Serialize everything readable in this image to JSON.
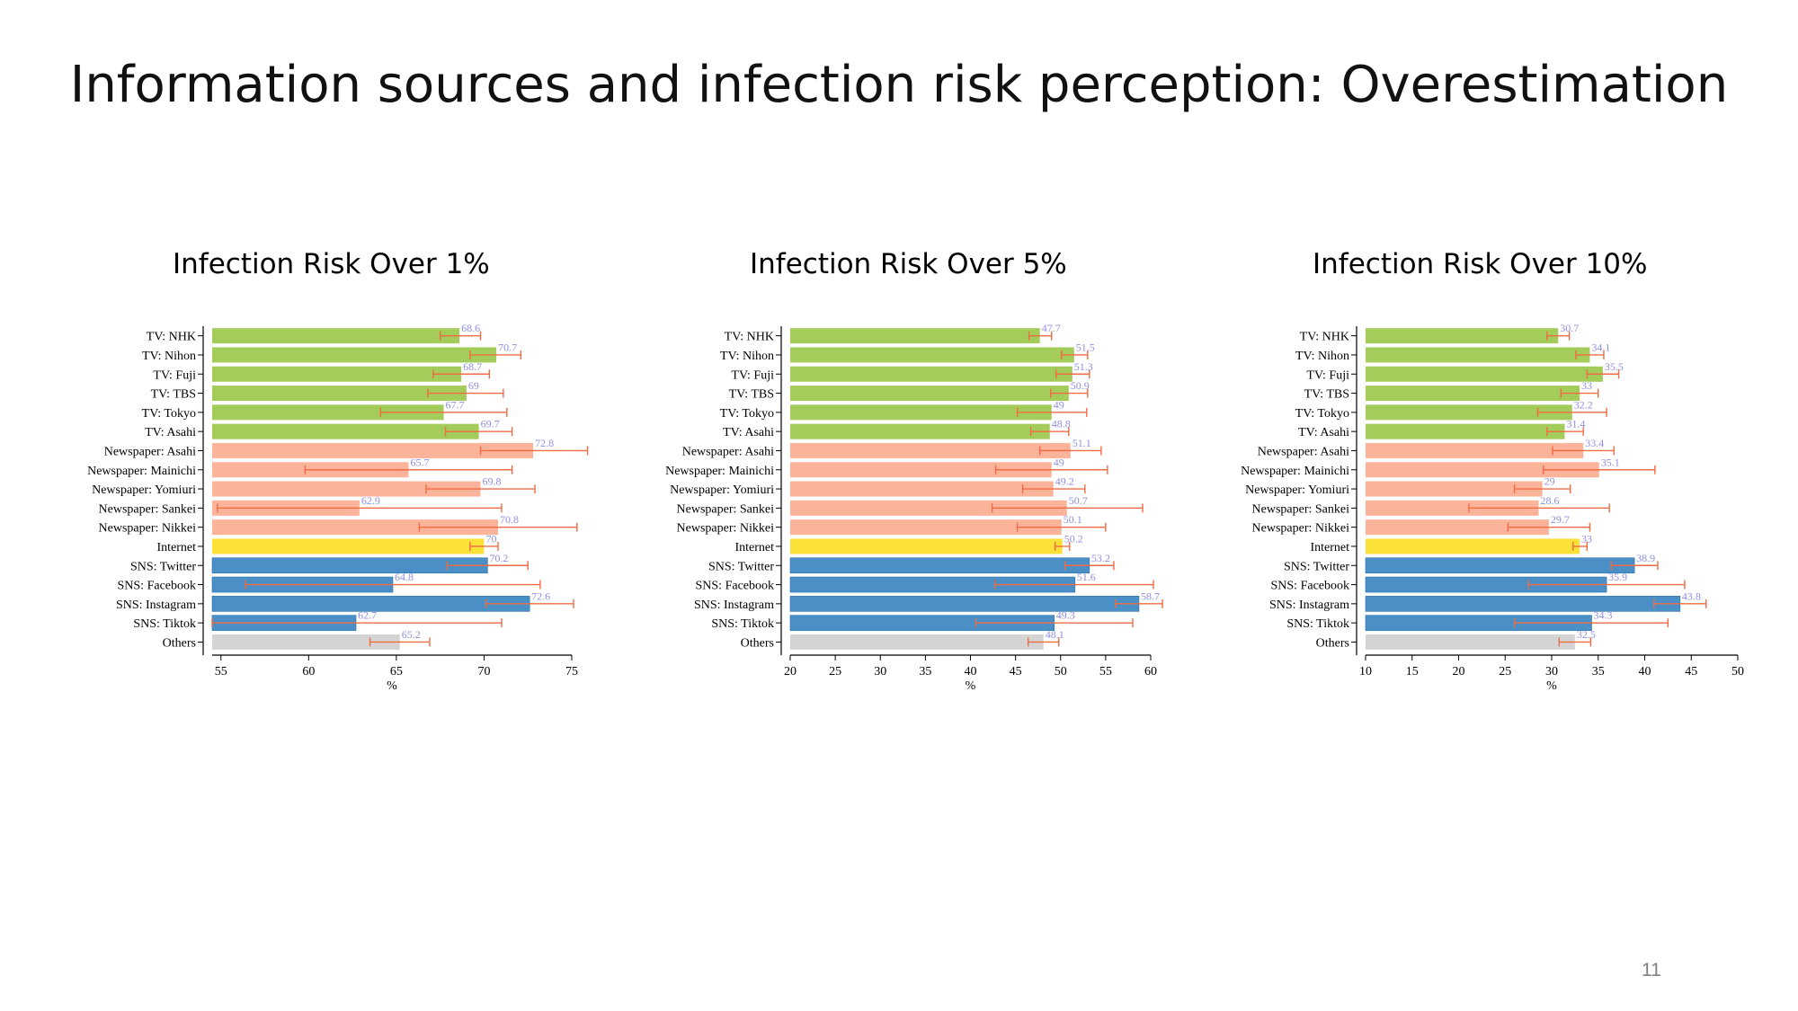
{
  "slide": {
    "title": "Information sources and infection risk perception: Overestimation",
    "page_number": "11"
  },
  "colors": {
    "tv": "#a3cc5a",
    "newspaper": "#fbb39a",
    "internet": "#fbe138",
    "sns": "#4a8fc5",
    "others": "#d4d4d4",
    "error_bar": "#f26b43",
    "value_label": "#8f8fe0"
  },
  "chart_data": [
    {
      "type": "bar",
      "orientation": "horizontal",
      "title": "Infection Risk Over 1%",
      "xlabel": "%",
      "xlim": [
        54.5,
        75
      ],
      "xticks": [
        55,
        60,
        65,
        70,
        75
      ],
      "categories": [
        "TV: NHK",
        "TV: Nihon",
        "TV: Fuji",
        "TV: TBS",
        "TV: Tokyo",
        "TV: Asahi",
        "Newspaper: Asahi",
        "Newspaper: Mainichi",
        "Newspaper: Yomiuri",
        "Newspaper: Sankei",
        "Newspaper: Nikkei",
        "Internet",
        "SNS: Twitter",
        "SNS: Facebook",
        "SNS: Instagram",
        "SNS: Tiktok",
        "Others"
      ],
      "groups": [
        "tv",
        "tv",
        "tv",
        "tv",
        "tv",
        "tv",
        "newspaper",
        "newspaper",
        "newspaper",
        "newspaper",
        "newspaper",
        "internet",
        "sns",
        "sns",
        "sns",
        "sns",
        "others"
      ],
      "values": [
        68.6,
        70.7,
        68.7,
        69,
        67.7,
        69.7,
        72.8,
        65.7,
        69.8,
        62.9,
        70.8,
        70,
        70.2,
        64.8,
        72.6,
        62.7,
        65.2
      ],
      "labels": [
        "68.6",
        "70.7",
        "68.7",
        "69",
        "67.7",
        "69.7",
        "72.8",
        "65.7",
        "69.8",
        "62.9",
        "70.8",
        "70",
        "70.2",
        "64.8",
        "72.6",
        "62.7",
        "65.2"
      ],
      "error_low": [
        67.5,
        69.2,
        67.1,
        66.8,
        64.1,
        67.8,
        69.8,
        59.8,
        66.7,
        54.8,
        66.3,
        69.2,
        67.9,
        56.4,
        70.1,
        54.5,
        63.5
      ],
      "error_high": [
        69.8,
        72.1,
        70.3,
        71.1,
        71.3,
        71.6,
        75.9,
        71.6,
        72.9,
        71.0,
        75.3,
        70.8,
        72.5,
        73.2,
        75.1,
        71.0,
        66.9
      ]
    },
    {
      "type": "bar",
      "orientation": "horizontal",
      "title": "Infection Risk Over 5%",
      "xlabel": "%",
      "xlim": [
        20,
        60
      ],
      "xticks": [
        20,
        25,
        30,
        35,
        40,
        45,
        50,
        55,
        60
      ],
      "categories": [
        "TV: NHK",
        "TV: Nihon",
        "TV: Fuji",
        "TV: TBS",
        "TV: Tokyo",
        "TV: Asahi",
        "Newspaper: Asahi",
        "Newspaper: Mainichi",
        "Newspaper: Yomiuri",
        "Newspaper: Sankei",
        "Newspaper: Nikkei",
        "Internet",
        "SNS: Twitter",
        "SNS: Facebook",
        "SNS: Instagram",
        "SNS: Tiktok",
        "Others"
      ],
      "groups": [
        "tv",
        "tv",
        "tv",
        "tv",
        "tv",
        "tv",
        "newspaper",
        "newspaper",
        "newspaper",
        "newspaper",
        "newspaper",
        "internet",
        "sns",
        "sns",
        "sns",
        "sns",
        "others"
      ],
      "values": [
        47.7,
        51.5,
        51.3,
        50.9,
        49,
        48.8,
        51.1,
        49,
        49.2,
        50.7,
        50.1,
        50.2,
        53.2,
        51.6,
        58.7,
        49.3,
        48.1
      ],
      "labels": [
        "47.7",
        "51.5",
        "51.3",
        "50.9",
        "49",
        "48.8",
        "51.1",
        "49",
        "49.2",
        "50.7",
        "50.1",
        "50.2",
        "53.2",
        "51.6",
        "58.7",
        "49.3",
        "48.1"
      ],
      "error_low": [
        46.5,
        50.1,
        49.5,
        48.9,
        45.2,
        46.7,
        47.7,
        42.8,
        45.8,
        42.4,
        45.2,
        49.4,
        50.5,
        42.7,
        56.1,
        40.6,
        46.4
      ],
      "error_high": [
        49.0,
        53.0,
        53.2,
        53.0,
        52.9,
        50.9,
        54.5,
        55.2,
        52.7,
        59.1,
        55.0,
        51.0,
        55.9,
        60.3,
        61.3,
        58.0,
        49.8
      ]
    },
    {
      "type": "bar",
      "orientation": "horizontal",
      "title": "Infection Risk Over 10%",
      "xlabel": "%",
      "xlim": [
        10,
        50
      ],
      "xticks": [
        10,
        15,
        20,
        25,
        30,
        35,
        40,
        45,
        50
      ],
      "categories": [
        "TV: NHK",
        "TV: Nihon",
        "TV: Fuji",
        "TV: TBS",
        "TV: Tokyo",
        "TV: Asahi",
        "Newspaper: Asahi",
        "Newspaper: Mainichi",
        "Newspaper: Yomiuri",
        "Newspaper: Sankei",
        "Newspaper: Nikkei",
        "Internet",
        "SNS: Twitter",
        "SNS: Facebook",
        "SNS: Instagram",
        "SNS: Tiktok",
        "Others"
      ],
      "groups": [
        "tv",
        "tv",
        "tv",
        "tv",
        "tv",
        "tv",
        "newspaper",
        "newspaper",
        "newspaper",
        "newspaper",
        "newspaper",
        "internet",
        "sns",
        "sns",
        "sns",
        "sns",
        "others"
      ],
      "values": [
        30.7,
        34.1,
        35.5,
        33,
        32.2,
        31.4,
        33.4,
        35.1,
        29,
        28.6,
        29.7,
        33,
        38.9,
        35.9,
        43.8,
        34.3,
        32.5
      ],
      "labels": [
        "30.7",
        "34.1",
        "35.5",
        "33",
        "32.2",
        "31.4",
        "33.4",
        "35.1",
        "29",
        "28.6",
        "29.7",
        "33",
        "38.9",
        "35.9",
        "43.8",
        "34.3",
        "32.5"
      ],
      "error_low": [
        29.5,
        32.6,
        33.8,
        31.0,
        28.5,
        29.5,
        30.1,
        29.1,
        26.0,
        21.1,
        25.3,
        32.3,
        36.4,
        27.5,
        41.0,
        26.0,
        30.8
      ],
      "error_high": [
        31.9,
        35.6,
        37.2,
        35.0,
        35.9,
        33.4,
        36.7,
        41.1,
        32.0,
        36.2,
        34.1,
        33.8,
        41.4,
        44.3,
        46.6,
        42.5,
        34.2
      ]
    }
  ]
}
